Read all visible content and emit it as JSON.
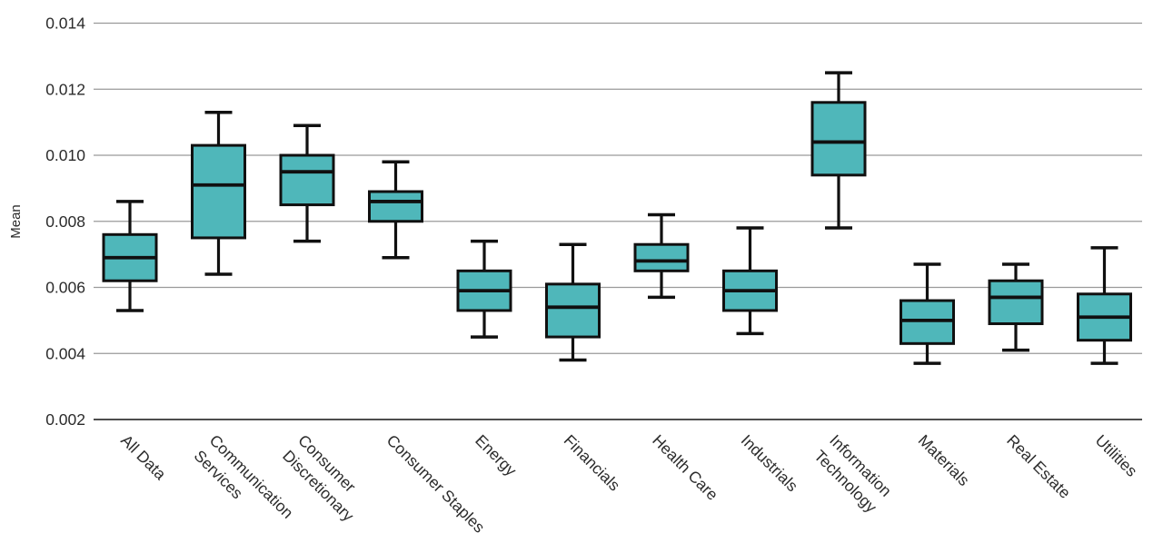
{
  "chart_data": {
    "type": "box",
    "title": "",
    "xlabel": "",
    "ylabel": "Mean",
    "legend": "none",
    "grid": "horizontal-only",
    "ylim": [
      0.002,
      0.014
    ],
    "ytick_values": [
      0.014,
      0.012,
      0.01,
      0.008,
      0.006,
      0.004,
      0.002
    ],
    "ytick_labels": [
      "0.014",
      "0.012",
      "0.010",
      "0.008",
      "0.006",
      "0.004",
      "0.002"
    ],
    "colors": {
      "box_fill": "#4fb7ba",
      "box_line": "#101010",
      "gridline": "#9a9a9a",
      "baseline": "#4d4d4d",
      "text": "#2b2b2b"
    },
    "categories": [
      "All Data",
      "Communication Services",
      "Consumer Discretionary",
      "Consumer Staples",
      "Energy",
      "Financials",
      "Health Care",
      "Industrials",
      "Information Technology",
      "Materials",
      "Real Estate",
      "Utilities"
    ],
    "series": [
      {
        "label": "All Data",
        "label_lines": [
          "All Data"
        ],
        "slug": "all-data",
        "low": 0.0053,
        "q1": 0.0062,
        "median": 0.0069,
        "q3": 0.0076,
        "high": 0.0086
      },
      {
        "label": "Communication Services",
        "label_lines": [
          "Communication",
          "Services"
        ],
        "slug": "communication-services",
        "low": 0.0064,
        "q1": 0.0075,
        "median": 0.0091,
        "q3": 0.0103,
        "high": 0.0113
      },
      {
        "label": "Consumer Discretionary",
        "label_lines": [
          "Consumer",
          "Discretionary"
        ],
        "slug": "consumer-discretionary",
        "low": 0.0074,
        "q1": 0.0085,
        "median": 0.0095,
        "q3": 0.01,
        "high": 0.0109
      },
      {
        "label": "Consumer Staples",
        "label_lines": [
          "Consumer Staples"
        ],
        "slug": "consumer-staples",
        "low": 0.0069,
        "q1": 0.008,
        "median": 0.0086,
        "q3": 0.0089,
        "high": 0.0098
      },
      {
        "label": "Energy",
        "label_lines": [
          "Energy"
        ],
        "slug": "energy",
        "low": 0.0045,
        "q1": 0.0053,
        "median": 0.0059,
        "q3": 0.0065,
        "high": 0.0074
      },
      {
        "label": "Financials",
        "label_lines": [
          "Financials"
        ],
        "slug": "financials",
        "low": 0.0038,
        "q1": 0.0045,
        "median": 0.0054,
        "q3": 0.0061,
        "high": 0.0073
      },
      {
        "label": "Health Care",
        "label_lines": [
          "Health Care"
        ],
        "slug": "health-care",
        "low": 0.0057,
        "q1": 0.0065,
        "median": 0.0068,
        "q3": 0.0073,
        "high": 0.0082
      },
      {
        "label": "Industrials",
        "label_lines": [
          "Industrials"
        ],
        "slug": "industrials",
        "low": 0.0046,
        "q1": 0.0053,
        "median": 0.0059,
        "q3": 0.0065,
        "high": 0.0078
      },
      {
        "label": "Information Technology",
        "label_lines": [
          "Information",
          "Technology"
        ],
        "slug": "information-technology",
        "low": 0.0078,
        "q1": 0.0094,
        "median": 0.0104,
        "q3": 0.0116,
        "high": 0.0125
      },
      {
        "label": "Materials",
        "label_lines": [
          "Materials"
        ],
        "slug": "materials",
        "low": 0.0037,
        "q1": 0.0043,
        "median": 0.005,
        "q3": 0.0056,
        "high": 0.0067
      },
      {
        "label": "Real Estate",
        "label_lines": [
          "Real Estate"
        ],
        "slug": "real-estate",
        "low": 0.0041,
        "q1": 0.0049,
        "median": 0.0057,
        "q3": 0.0062,
        "high": 0.0067
      },
      {
        "label": "Utilities",
        "label_lines": [
          "Utilities"
        ],
        "slug": "utilities",
        "low": 0.0037,
        "q1": 0.0044,
        "median": 0.0051,
        "q3": 0.0058,
        "high": 0.0072
      }
    ]
  }
}
